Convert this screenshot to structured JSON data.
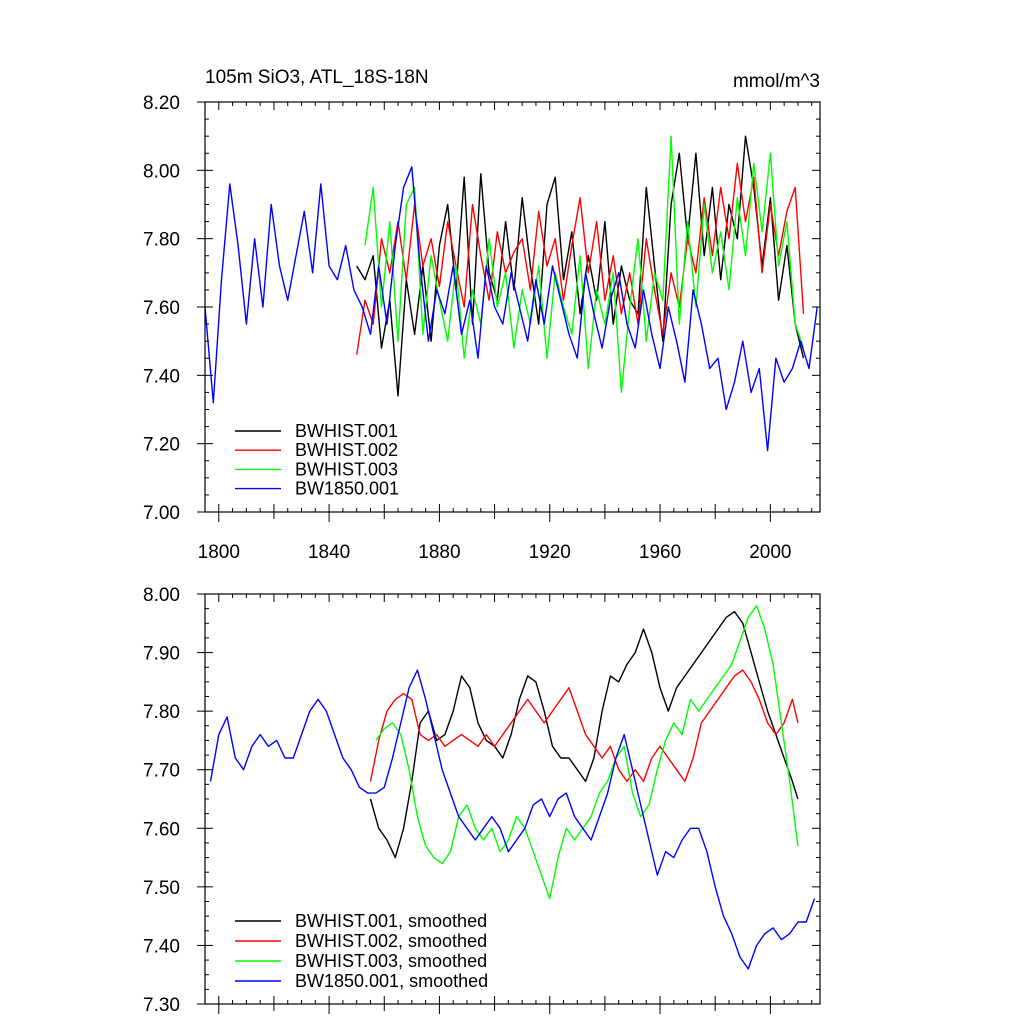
{
  "chart_data": [
    {
      "type": "line",
      "title": "105m SiO3, ATL_18S-18N",
      "units": "mmol/m^3",
      "xlabel": "",
      "ylabel": "",
      "xlim": [
        1795,
        2018
      ],
      "ylim": [
        7.0,
        8.2
      ],
      "xticks": [
        1800,
        1840,
        1880,
        1920,
        1960,
        2000
      ],
      "yticks": [
        7.0,
        7.2,
        7.4,
        7.6,
        7.8,
        8.0,
        8.2
      ],
      "ytick_labels": [
        "7.00",
        "7.20",
        "7.40",
        "7.60",
        "7.80",
        "8.00",
        "8.20"
      ],
      "legend_position": "bottom-left",
      "series": [
        {
          "name": "BWHIST.001",
          "color": "#000000",
          "x": [
            1850,
            1853,
            1856,
            1859,
            1862,
            1865,
            1868,
            1871,
            1874,
            1877,
            1880,
            1883,
            1886,
            1889,
            1892,
            1895,
            1898,
            1901,
            1904,
            1907,
            1910,
            1913,
            1916,
            1919,
            1922,
            1925,
            1928,
            1931,
            1934,
            1937,
            1940,
            1943,
            1946,
            1949,
            1952,
            1955,
            1958,
            1961,
            1964,
            1967,
            1970,
            1973,
            1976,
            1979,
            1982,
            1985,
            1988,
            1991,
            1994,
            1997,
            2000,
            2003,
            2006,
            2009,
            2012
          ],
          "y": [
            7.72,
            7.68,
            7.75,
            7.48,
            7.62,
            7.34,
            7.68,
            7.52,
            7.72,
            7.5,
            7.78,
            7.9,
            7.65,
            7.98,
            7.55,
            7.99,
            7.7,
            7.62,
            7.85,
            7.65,
            7.92,
            7.72,
            7.55,
            7.9,
            7.98,
            7.68,
            7.82,
            7.58,
            7.75,
            7.62,
            7.85,
            7.55,
            7.72,
            7.62,
            7.58,
            7.95,
            7.72,
            7.5,
            7.9,
            8.05,
            7.8,
            8.05,
            7.75,
            7.95,
            7.68,
            7.9,
            7.8,
            8.1,
            7.95,
            7.72,
            7.92,
            7.62,
            7.78,
            7.55,
            7.45
          ]
        },
        {
          "name": "BWHIST.002",
          "color": "#ff0000",
          "x": [
            1850,
            1853,
            1856,
            1859,
            1862,
            1865,
            1868,
            1871,
            1874,
            1877,
            1880,
            1883,
            1886,
            1889,
            1892,
            1895,
            1898,
            1901,
            1904,
            1907,
            1910,
            1913,
            1916,
            1919,
            1922,
            1925,
            1928,
            1931,
            1934,
            1937,
            1940,
            1943,
            1946,
            1949,
            1952,
            1955,
            1958,
            1961,
            1964,
            1967,
            1970,
            1973,
            1976,
            1979,
            1982,
            1985,
            1988,
            1991,
            1994,
            1997,
            2000,
            2003,
            2006,
            2009,
            2012
          ],
          "y": [
            7.46,
            7.62,
            7.55,
            7.8,
            7.7,
            7.85,
            7.68,
            7.9,
            7.72,
            7.8,
            7.66,
            7.85,
            7.72,
            7.6,
            7.9,
            7.75,
            7.62,
            7.82,
            7.7,
            7.76,
            7.8,
            7.65,
            7.88,
            7.72,
            7.8,
            7.62,
            7.78,
            7.92,
            7.7,
            7.85,
            7.62,
            7.75,
            7.58,
            7.7,
            7.55,
            7.8,
            7.65,
            7.52,
            7.7,
            7.6,
            7.8,
            7.7,
            7.92,
            7.75,
            7.95,
            7.8,
            8.02,
            7.85,
            7.98,
            7.7,
            7.9,
            7.75,
            7.88,
            7.95,
            7.58
          ]
        },
        {
          "name": "BWHIST.003",
          "color": "#00ff00",
          "x": [
            1853,
            1856,
            1859,
            1862,
            1865,
            1868,
            1871,
            1874,
            1877,
            1880,
            1883,
            1886,
            1889,
            1892,
            1895,
            1898,
            1901,
            1904,
            1907,
            1910,
            1913,
            1916,
            1919,
            1922,
            1925,
            1928,
            1931,
            1934,
            1937,
            1940,
            1943,
            1946,
            1949,
            1952,
            1955,
            1958,
            1961,
            1964,
            1967,
            1970,
            1973,
            1976,
            1979,
            1982,
            1985,
            1988,
            1991,
            1994,
            1997,
            2000,
            2003,
            2006,
            2009,
            2012
          ],
          "y": [
            7.78,
            7.95,
            7.6,
            7.85,
            7.5,
            7.9,
            7.95,
            7.52,
            7.75,
            7.62,
            7.5,
            7.72,
            7.45,
            7.65,
            7.55,
            7.8,
            7.6,
            7.7,
            7.48,
            7.65,
            7.55,
            7.72,
            7.45,
            7.7,
            7.6,
            7.52,
            7.75,
            7.42,
            7.65,
            7.55,
            7.7,
            7.35,
            7.6,
            7.8,
            7.5,
            7.7,
            7.62,
            8.1,
            7.55,
            7.85,
            7.6,
            7.9,
            7.7,
            7.82,
            7.65,
            7.92,
            7.75,
            8.02,
            7.82,
            8.05,
            7.72,
            7.85,
            7.55,
            7.48
          ]
        },
        {
          "name": "BW1850.001",
          "color": "#0000ff",
          "x": [
            1795,
            1798,
            1801,
            1804,
            1807,
            1810,
            1813,
            1816,
            1819,
            1822,
            1825,
            1828,
            1831,
            1834,
            1837,
            1840,
            1843,
            1846,
            1849,
            1852,
            1855,
            1858,
            1861,
            1864,
            1867,
            1870,
            1873,
            1876,
            1879,
            1882,
            1885,
            1888,
            1891,
            1894,
            1897,
            1900,
            1903,
            1906,
            1909,
            1912,
            1915,
            1918,
            1921,
            1924,
            1927,
            1930,
            1933,
            1936,
            1939,
            1942,
            1945,
            1948,
            1951,
            1954,
            1957,
            1960,
            1963,
            1966,
            1969,
            1972,
            1975,
            1978,
            1981,
            1984,
            1987,
            1990,
            1993,
            1996,
            1999,
            2002,
            2005,
            2008,
            2011,
            2014,
            2017
          ],
          "y": [
            7.6,
            7.32,
            7.68,
            7.96,
            7.78,
            7.55,
            7.8,
            7.6,
            7.9,
            7.72,
            7.62,
            7.75,
            7.88,
            7.7,
            7.96,
            7.72,
            7.68,
            7.78,
            7.65,
            7.6,
            7.52,
            7.72,
            7.55,
            7.78,
            7.95,
            8.01,
            7.72,
            7.5,
            7.65,
            7.58,
            7.72,
            7.52,
            7.62,
            7.45,
            7.72,
            7.6,
            7.55,
            7.7,
            7.6,
            7.5,
            7.68,
            7.55,
            7.72,
            7.62,
            7.52,
            7.45,
            7.7,
            7.58,
            7.48,
            7.62,
            7.7,
            7.55,
            7.48,
            7.65,
            7.52,
            7.42,
            7.6,
            7.5,
            7.38,
            7.65,
            7.55,
            7.42,
            7.45,
            7.3,
            7.38,
            7.5,
            7.35,
            7.42,
            7.18,
            7.45,
            7.38,
            7.42,
            7.5,
            7.42,
            7.6
          ]
        }
      ]
    },
    {
      "type": "line",
      "title": "",
      "units": "",
      "xlabel": "",
      "ylabel": "",
      "xlim": [
        1795,
        2018
      ],
      "ylim": [
        7.3,
        8.0
      ],
      "xticks": [
        1800,
        1840,
        1880,
        1920,
        1960,
        2000
      ],
      "yticks": [
        7.3,
        7.4,
        7.5,
        7.6,
        7.7,
        7.8,
        7.9,
        8.0
      ],
      "ytick_labels": [
        "7.30",
        "7.40",
        "7.50",
        "7.60",
        "7.70",
        "7.80",
        "7.90",
        "8.00"
      ],
      "legend_position": "bottom-left",
      "series": [
        {
          "name": "BWHIST.001, smoothed",
          "color": "#000000",
          "x": [
            1855,
            1858,
            1861,
            1864,
            1867,
            1870,
            1873,
            1876,
            1879,
            1882,
            1885,
            1888,
            1891,
            1894,
            1897,
            1900,
            1903,
            1906,
            1909,
            1912,
            1915,
            1918,
            1921,
            1924,
            1927,
            1930,
            1933,
            1936,
            1939,
            1942,
            1945,
            1948,
            1951,
            1954,
            1957,
            1960,
            1963,
            1966,
            1969,
            1972,
            1975,
            1978,
            1981,
            1984,
            1987,
            1990,
            1993,
            1996,
            1999,
            2002,
            2005,
            2008,
            2010
          ],
          "y": [
            7.65,
            7.6,
            7.58,
            7.55,
            7.6,
            7.68,
            7.78,
            7.8,
            7.75,
            7.76,
            7.8,
            7.86,
            7.84,
            7.78,
            7.75,
            7.74,
            7.72,
            7.76,
            7.82,
            7.86,
            7.85,
            7.8,
            7.74,
            7.72,
            7.72,
            7.7,
            7.68,
            7.72,
            7.8,
            7.86,
            7.85,
            7.88,
            7.9,
            7.94,
            7.9,
            7.84,
            7.8,
            7.84,
            7.86,
            7.88,
            7.9,
            7.92,
            7.94,
            7.96,
            7.97,
            7.95,
            7.9,
            7.85,
            7.8,
            7.76,
            7.72,
            7.68,
            7.65
          ]
        },
        {
          "name": "BWHIST.002, smoothed",
          "color": "#ff0000",
          "x": [
            1855,
            1858,
            1861,
            1864,
            1867,
            1870,
            1873,
            1876,
            1879,
            1882,
            1885,
            1888,
            1891,
            1894,
            1897,
            1900,
            1903,
            1906,
            1909,
            1912,
            1915,
            1918,
            1921,
            1924,
            1927,
            1930,
            1933,
            1936,
            1939,
            1942,
            1945,
            1948,
            1951,
            1954,
            1957,
            1960,
            1963,
            1966,
            1969,
            1972,
            1975,
            1978,
            1981,
            1984,
            1987,
            1990,
            1993,
            1996,
            1999,
            2002,
            2005,
            2008,
            2010
          ],
          "y": [
            7.68,
            7.75,
            7.8,
            7.82,
            7.83,
            7.82,
            7.76,
            7.75,
            7.76,
            7.74,
            7.75,
            7.76,
            7.75,
            7.74,
            7.76,
            7.74,
            7.76,
            7.78,
            7.8,
            7.82,
            7.8,
            7.78,
            7.8,
            7.82,
            7.84,
            7.8,
            7.76,
            7.74,
            7.72,
            7.74,
            7.7,
            7.68,
            7.7,
            7.68,
            7.72,
            7.74,
            7.72,
            7.7,
            7.68,
            7.72,
            7.78,
            7.8,
            7.82,
            7.84,
            7.86,
            7.87,
            7.85,
            7.82,
            7.78,
            7.76,
            7.78,
            7.82,
            7.78
          ]
        },
        {
          "name": "BWHIST.003, smoothed",
          "color": "#00ff00",
          "x": [
            1857,
            1860,
            1863,
            1866,
            1869,
            1872,
            1875,
            1878,
            1881,
            1884,
            1887,
            1890,
            1893,
            1896,
            1899,
            1902,
            1905,
            1908,
            1911,
            1914,
            1917,
            1920,
            1923,
            1926,
            1929,
            1932,
            1935,
            1938,
            1941,
            1944,
            1947,
            1950,
            1953,
            1956,
            1959,
            1962,
            1965,
            1968,
            1971,
            1974,
            1977,
            1980,
            1983,
            1986,
            1989,
            1992,
            1995,
            1998,
            2001,
            2004,
            2007,
            2010
          ],
          "y": [
            7.75,
            7.77,
            7.78,
            7.76,
            7.7,
            7.62,
            7.57,
            7.55,
            7.54,
            7.56,
            7.62,
            7.64,
            7.6,
            7.58,
            7.6,
            7.56,
            7.58,
            7.62,
            7.6,
            7.56,
            7.52,
            7.48,
            7.55,
            7.6,
            7.58,
            7.6,
            7.62,
            7.66,
            7.68,
            7.72,
            7.74,
            7.66,
            7.62,
            7.64,
            7.7,
            7.75,
            7.78,
            7.76,
            7.82,
            7.8,
            7.82,
            7.84,
            7.86,
            7.88,
            7.92,
            7.96,
            7.98,
            7.94,
            7.88,
            7.78,
            7.68,
            7.57
          ]
        },
        {
          "name": "BW1850.001, smoothed",
          "color": "#0000ff",
          "x": [
            1797,
            1800,
            1803,
            1806,
            1809,
            1812,
            1815,
            1818,
            1821,
            1824,
            1827,
            1830,
            1833,
            1836,
            1839,
            1842,
            1845,
            1848,
            1851,
            1854,
            1857,
            1860,
            1863,
            1866,
            1869,
            1872,
            1875,
            1878,
            1881,
            1884,
            1887,
            1890,
            1893,
            1896,
            1899,
            1902,
            1905,
            1908,
            1911,
            1914,
            1917,
            1920,
            1923,
            1926,
            1929,
            1932,
            1935,
            1938,
            1941,
            1944,
            1947,
            1950,
            1953,
            1956,
            1959,
            1962,
            1965,
            1968,
            1971,
            1974,
            1977,
            1980,
            1983,
            1986,
            1989,
            1992,
            1995,
            1998,
            2001,
            2004,
            2007,
            2010,
            2013,
            2016
          ],
          "y": [
            7.68,
            7.76,
            7.79,
            7.72,
            7.7,
            7.74,
            7.76,
            7.74,
            7.75,
            7.72,
            7.72,
            7.76,
            7.8,
            7.82,
            7.8,
            7.76,
            7.72,
            7.7,
            7.67,
            7.66,
            7.66,
            7.67,
            7.72,
            7.78,
            7.84,
            7.87,
            7.82,
            7.76,
            7.7,
            7.66,
            7.62,
            7.6,
            7.58,
            7.6,
            7.62,
            7.6,
            7.56,
            7.58,
            7.6,
            7.64,
            7.65,
            7.62,
            7.65,
            7.66,
            7.62,
            7.6,
            7.58,
            7.62,
            7.66,
            7.72,
            7.76,
            7.7,
            7.64,
            7.58,
            7.52,
            7.56,
            7.55,
            7.58,
            7.6,
            7.6,
            7.56,
            7.5,
            7.45,
            7.42,
            7.38,
            7.36,
            7.4,
            7.42,
            7.43,
            7.41,
            7.42,
            7.44,
            7.44,
            7.48
          ]
        }
      ]
    }
  ]
}
